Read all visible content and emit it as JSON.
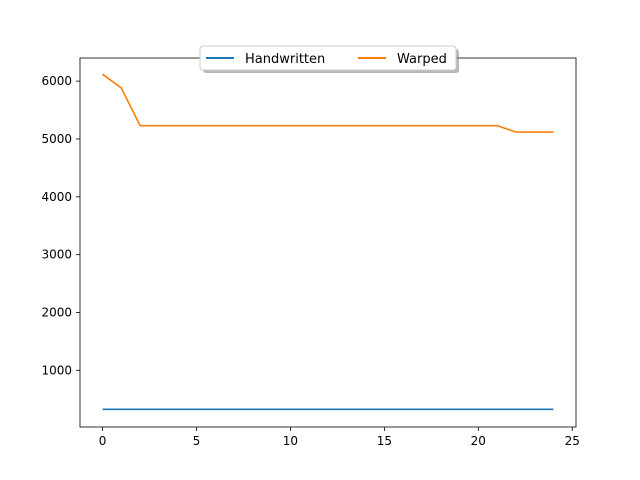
{
  "chart_data": {
    "type": "line",
    "title": "",
    "xlabel": "",
    "ylabel": "",
    "xlim": [
      -1.2,
      25.2
    ],
    "ylim": [
      20,
      6400
    ],
    "x_ticks": [
      0,
      5,
      10,
      15,
      20,
      25
    ],
    "y_ticks": [
      1000,
      2000,
      3000,
      4000,
      5000,
      6000
    ],
    "grid": false,
    "legend_position": "top-center",
    "x": [
      0,
      1,
      2,
      3,
      4,
      5,
      6,
      7,
      8,
      9,
      10,
      11,
      12,
      13,
      14,
      15,
      16,
      17,
      18,
      19,
      20,
      21,
      22,
      23,
      24
    ],
    "series": [
      {
        "name": "Handwritten",
        "color": "#1f77b4",
        "values": [
          325,
          325,
          325,
          325,
          325,
          325,
          325,
          325,
          325,
          325,
          325,
          325,
          325,
          325,
          325,
          325,
          325,
          325,
          325,
          325,
          325,
          325,
          325,
          325,
          325
        ]
      },
      {
        "name": "Warped",
        "color": "#ff7f0e",
        "values": [
          6120,
          5880,
          5230,
          5230,
          5230,
          5230,
          5230,
          5230,
          5230,
          5230,
          5230,
          5230,
          5230,
          5230,
          5230,
          5230,
          5230,
          5230,
          5230,
          5230,
          5230,
          5230,
          5120,
          5120,
          5120
        ]
      }
    ]
  }
}
